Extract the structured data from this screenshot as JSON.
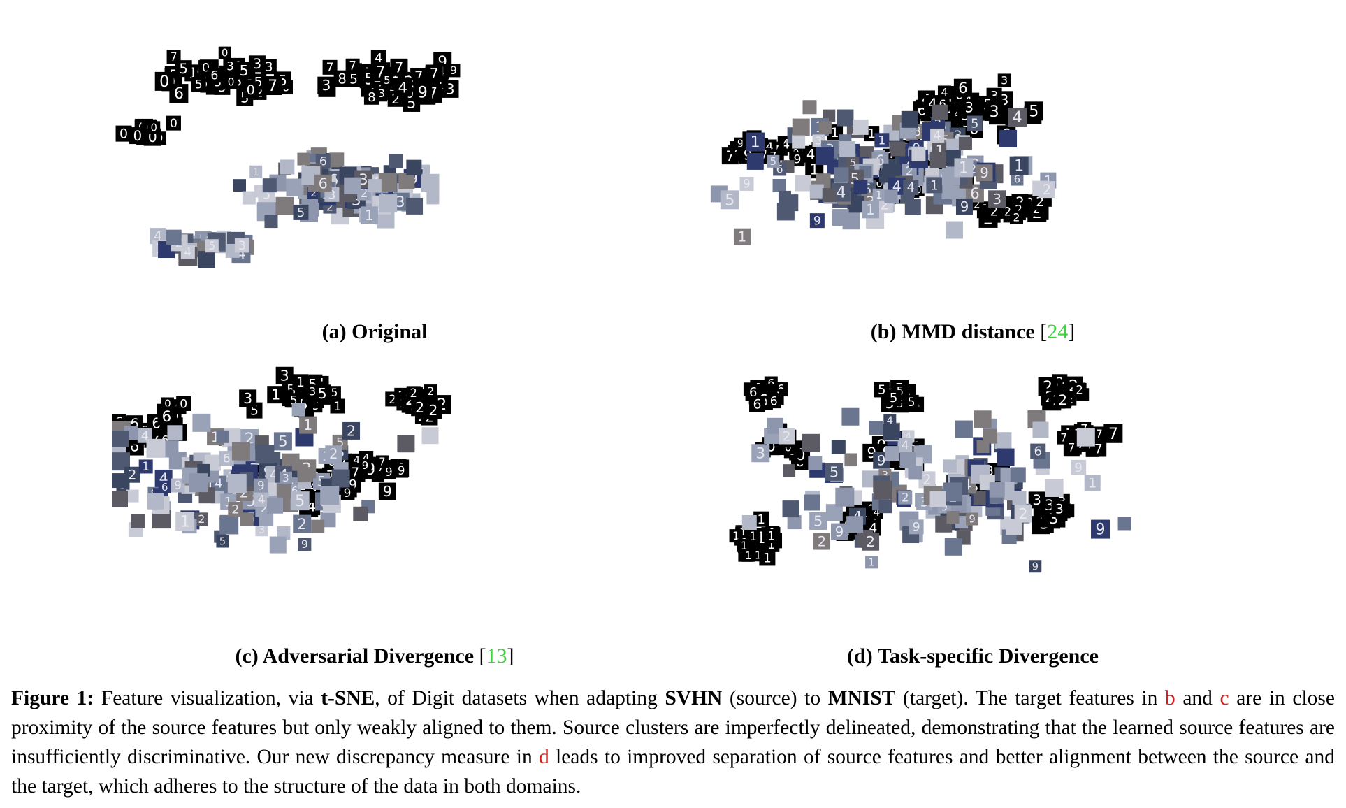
{
  "figure": {
    "panels": [
      {
        "id": "a",
        "label": "(a) Original",
        "ref": ""
      },
      {
        "id": "b",
        "label": "(b) MMD distance",
        "ref": "24"
      },
      {
        "id": "c",
        "label": "(c) Adversarial Divergence",
        "ref": "13"
      },
      {
        "id": "d",
        "label": "(d) Task-specific Divergence",
        "ref": ""
      }
    ],
    "colors": {
      "target_tile": "#000000",
      "target_digit": "#ffffff",
      "source_palette": [
        "#3a4660",
        "#6a7590",
        "#8d96ad",
        "#b2b8c8",
        "#4f5a72",
        "#5c5a63",
        "#7f7a7c",
        "#2e3a6e",
        "#c8cbd6",
        "#9aa2b8"
      ],
      "reference_green": "#3fd23f",
      "reference_red": "#d62020"
    }
  },
  "caption": {
    "fig": "Figure 1:",
    "t1": " Feature visualization, via ",
    "tsne": "t-SNE",
    "t2": ", of Digit datasets when adapting ",
    "svhn": "SVHN",
    "t3": " (source) to ",
    "mnist": "MNIST",
    "t4": " (target). The target features in ",
    "b": "b",
    "t5": " and ",
    "c": "c",
    "t6": " are in close proximity of the source features but only weakly aligned to them. Source clusters are imperfectly delineated, demonstrating that the learned source features are insufficiently discriminative. Our new discrepancy measure in ",
    "d": "d",
    "t7": " leads to improved separation of source features and better alignment between the source and the target, which adheres to the structure of the data in both domains."
  }
}
